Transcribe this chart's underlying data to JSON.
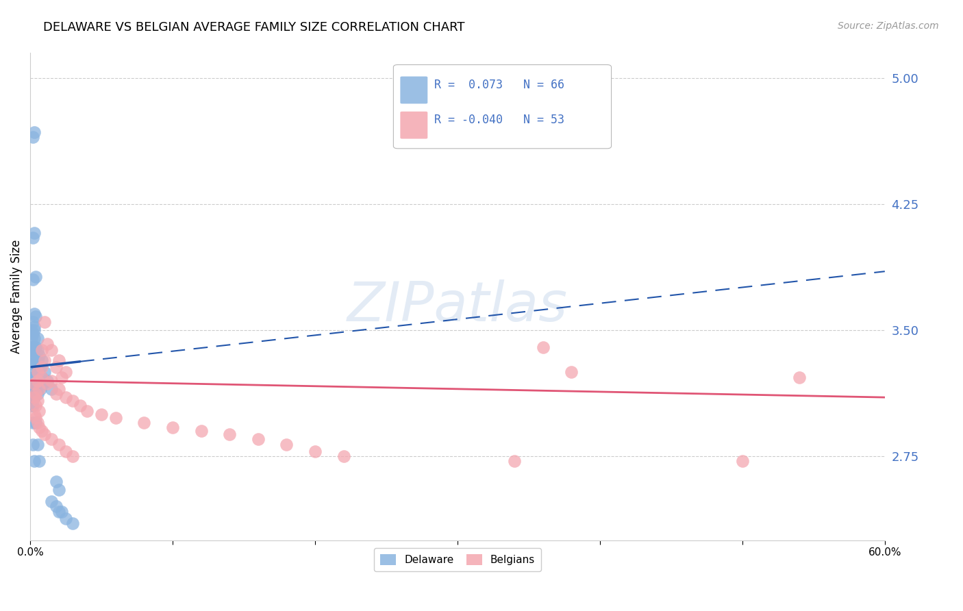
{
  "title": "DELAWARE VS BELGIAN AVERAGE FAMILY SIZE CORRELATION CHART",
  "source": "Source: ZipAtlas.com",
  "ylabel": "Average Family Size",
  "right_yticks": [
    2.75,
    3.5,
    4.25,
    5.0
  ],
  "watermark": "ZIPatlas",
  "delaware_r": 0.073,
  "delaware_n": 66,
  "belgians_r": -0.04,
  "belgians_n": 53,
  "delaware_color": "#8ab4e0",
  "belgians_color": "#f4a7b0",
  "delaware_line_color": "#2255aa",
  "belgians_line_color": "#e05575",
  "background_color": "#ffffff",
  "grid_color": "#cccccc",
  "title_color": "#000000",
  "right_tick_color": "#4472c4",
  "delaware_points": [
    [
      0.002,
      4.65
    ],
    [
      0.003,
      4.68
    ],
    [
      0.002,
      4.05
    ],
    [
      0.003,
      4.08
    ],
    [
      0.002,
      3.8
    ],
    [
      0.004,
      3.82
    ],
    [
      0.003,
      3.6
    ],
    [
      0.004,
      3.58
    ],
    [
      0.002,
      3.55
    ],
    [
      0.003,
      3.52
    ],
    [
      0.001,
      3.5
    ],
    [
      0.002,
      3.48
    ],
    [
      0.003,
      3.5
    ],
    [
      0.001,
      3.45
    ],
    [
      0.003,
      3.45
    ],
    [
      0.005,
      3.45
    ],
    [
      0.001,
      3.4
    ],
    [
      0.002,
      3.4
    ],
    [
      0.004,
      3.4
    ],
    [
      0.001,
      3.38
    ],
    [
      0.003,
      3.38
    ],
    [
      0.005,
      3.38
    ],
    [
      0.001,
      3.35
    ],
    [
      0.003,
      3.35
    ],
    [
      0.006,
      3.35
    ],
    [
      0.002,
      3.32
    ],
    [
      0.005,
      3.32
    ],
    [
      0.008,
      3.32
    ],
    [
      0.001,
      3.3
    ],
    [
      0.004,
      3.3
    ],
    [
      0.007,
      3.28
    ],
    [
      0.002,
      3.25
    ],
    [
      0.005,
      3.25
    ],
    [
      0.01,
      3.25
    ],
    [
      0.001,
      3.22
    ],
    [
      0.003,
      3.22
    ],
    [
      0.008,
      3.22
    ],
    [
      0.002,
      3.2
    ],
    [
      0.006,
      3.2
    ],
    [
      0.012,
      3.2
    ],
    [
      0.001,
      3.18
    ],
    [
      0.004,
      3.18
    ],
    [
      0.009,
      3.18
    ],
    [
      0.002,
      3.15
    ],
    [
      0.007,
      3.15
    ],
    [
      0.015,
      3.15
    ],
    [
      0.001,
      3.12
    ],
    [
      0.005,
      3.12
    ],
    [
      0.001,
      3.1
    ],
    [
      0.003,
      3.1
    ],
    [
      0.001,
      3.05
    ],
    [
      0.002,
      3.05
    ],
    [
      0.002,
      2.95
    ],
    [
      0.004,
      2.95
    ],
    [
      0.002,
      2.82
    ],
    [
      0.005,
      2.82
    ],
    [
      0.003,
      2.72
    ],
    [
      0.006,
      2.72
    ],
    [
      0.018,
      2.6
    ],
    [
      0.02,
      2.55
    ],
    [
      0.015,
      2.48
    ],
    [
      0.018,
      2.45
    ],
    [
      0.02,
      2.42
    ],
    [
      0.022,
      2.42
    ],
    [
      0.025,
      2.38
    ],
    [
      0.03,
      2.35
    ]
  ],
  "belgians_points": [
    [
      0.01,
      3.55
    ],
    [
      0.012,
      3.42
    ],
    [
      0.008,
      3.38
    ],
    [
      0.015,
      3.38
    ],
    [
      0.01,
      3.32
    ],
    [
      0.02,
      3.32
    ],
    [
      0.008,
      3.28
    ],
    [
      0.018,
      3.28
    ],
    [
      0.005,
      3.25
    ],
    [
      0.025,
      3.25
    ],
    [
      0.008,
      3.22
    ],
    [
      0.022,
      3.22
    ],
    [
      0.005,
      3.2
    ],
    [
      0.015,
      3.2
    ],
    [
      0.003,
      3.18
    ],
    [
      0.012,
      3.18
    ],
    [
      0.006,
      3.15
    ],
    [
      0.02,
      3.15
    ],
    [
      0.004,
      3.12
    ],
    [
      0.018,
      3.12
    ],
    [
      0.003,
      3.1
    ],
    [
      0.025,
      3.1
    ],
    [
      0.005,
      3.08
    ],
    [
      0.03,
      3.08
    ],
    [
      0.004,
      3.05
    ],
    [
      0.035,
      3.05
    ],
    [
      0.006,
      3.02
    ],
    [
      0.04,
      3.02
    ],
    [
      0.003,
      3.0
    ],
    [
      0.05,
      3.0
    ],
    [
      0.004,
      2.98
    ],
    [
      0.06,
      2.98
    ],
    [
      0.005,
      2.95
    ],
    [
      0.08,
      2.95
    ],
    [
      0.006,
      2.92
    ],
    [
      0.1,
      2.92
    ],
    [
      0.008,
      2.9
    ],
    [
      0.12,
      2.9
    ],
    [
      0.01,
      2.88
    ],
    [
      0.14,
      2.88
    ],
    [
      0.015,
      2.85
    ],
    [
      0.16,
      2.85
    ],
    [
      0.02,
      2.82
    ],
    [
      0.18,
      2.82
    ],
    [
      0.025,
      2.78
    ],
    [
      0.2,
      2.78
    ],
    [
      0.03,
      2.75
    ],
    [
      0.22,
      2.75
    ],
    [
      0.34,
      2.72
    ],
    [
      0.5,
      2.72
    ],
    [
      0.36,
      3.4
    ],
    [
      0.38,
      3.25
    ],
    [
      0.54,
      3.22
    ]
  ],
  "xlim": [
    0.0,
    0.6
  ],
  "ylim": [
    2.25,
    5.15
  ],
  "xticks": [
    0.0,
    0.1,
    0.2,
    0.3,
    0.4,
    0.5,
    0.6
  ],
  "xtick_labels": [
    "0.0%",
    "",
    "",
    "",
    "",
    "",
    "60.0%"
  ]
}
